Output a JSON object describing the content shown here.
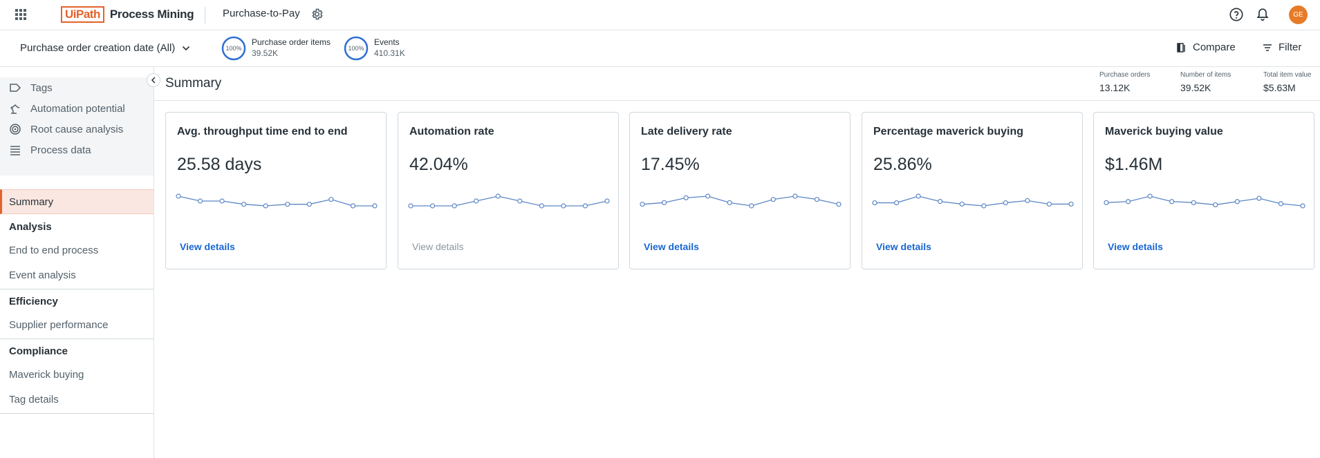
{
  "topbar": {
    "logo_brand": "UiPath",
    "logo_product": "Process Mining",
    "app_name": "Purchase-to-Pay",
    "avatar_initials": "GE"
  },
  "filterbar": {
    "date_filter": "Purchase order creation date (All)",
    "kpis": [
      {
        "ring": "100%",
        "name": "Purchase order items",
        "value": "39.52K"
      },
      {
        "ring": "100%",
        "name": "Events",
        "value": "410.31K"
      }
    ],
    "compare_label": "Compare",
    "filter_label": "Filter"
  },
  "sidebar": {
    "tools": [
      {
        "label": "Tags",
        "icon": "tag-icon"
      },
      {
        "label": "Automation potential",
        "icon": "robot-arm-icon"
      },
      {
        "label": "Root cause analysis",
        "icon": "target-icon"
      },
      {
        "label": "Process data",
        "icon": "list-icon"
      }
    ],
    "summary": "Summary",
    "groups": {
      "analysis": "Analysis",
      "efficiency": "Efficiency",
      "compliance": "Compliance"
    },
    "items": {
      "end_to_end": "End to end process",
      "event_analysis": "Event analysis",
      "supplier_performance": "Supplier performance",
      "maverick_buying": "Maverick buying",
      "tag_details": "Tag details"
    }
  },
  "summary": {
    "title": "Summary",
    "stats": [
      {
        "label": "Purchase orders",
        "value": "13.12K"
      },
      {
        "label": "Number of items",
        "value": "39.52K"
      },
      {
        "label": "Total item value",
        "value": "$5.63M"
      }
    ]
  },
  "cards": [
    {
      "title": "Avg. throughput time end to end",
      "value": "25.58 days",
      "link": "View details",
      "link_enabled": true,
      "trend": [
        0.5,
        0.47,
        0.47,
        0.45,
        0.44,
        0.45,
        0.45,
        0.48,
        0.44,
        0.44
      ]
    },
    {
      "title": "Automation rate",
      "value": "42.04%",
      "link": "View details",
      "link_enabled": false,
      "trend": [
        0.42,
        0.42,
        0.42,
        0.43,
        0.44,
        0.43,
        0.42,
        0.42,
        0.42,
        0.43
      ]
    },
    {
      "title": "Late delivery rate",
      "value": "17.45%",
      "link": "View details",
      "link_enabled": true,
      "trend": [
        0.16,
        0.165,
        0.18,
        0.185,
        0.165,
        0.155,
        0.175,
        0.185,
        0.175,
        0.16
      ]
    },
    {
      "title": "Percentage maverick buying",
      "value": "25.86%",
      "link": "View details",
      "link_enabled": true,
      "trend": [
        0.255,
        0.255,
        0.27,
        0.258,
        0.252,
        0.248,
        0.255,
        0.26,
        0.252,
        0.252
      ]
    },
    {
      "title": "Maverick buying value",
      "value": "$1.46M",
      "link": "View details",
      "link_enabled": true,
      "trend": [
        1.44,
        1.45,
        1.5,
        1.45,
        1.44,
        1.42,
        1.45,
        1.48,
        1.43,
        1.41
      ]
    }
  ],
  "colors": {
    "accent": "#e3622b",
    "link": "#1967d2",
    "sparkline": "#5b86c5",
    "ring": "#2f6fd1",
    "avatar": "#e77b27"
  }
}
